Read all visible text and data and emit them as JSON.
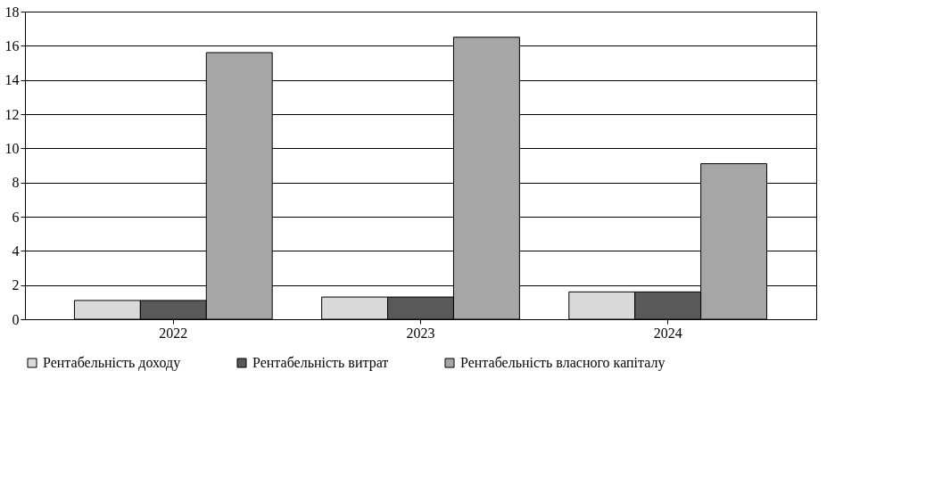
{
  "chart_data": {
    "type": "bar",
    "categories": [
      "2022",
      "2023",
      "2024"
    ],
    "series": [
      {
        "name": "Рентабельність доходу",
        "color": "#d9d9d9",
        "values": [
          1.1,
          1.3,
          1.6
        ]
      },
      {
        "name": "Рентабельність витрат",
        "color": "#595959",
        "values": [
          1.1,
          1.3,
          1.6
        ]
      },
      {
        "name": "Рентабельність власного капіталу",
        "color": "#a6a6a6",
        "values": [
          15.6,
          16.5,
          9.1
        ]
      }
    ],
    "ylim": [
      0,
      18
    ],
    "yticks": [
      0,
      2,
      4,
      6,
      8,
      10,
      12,
      14,
      16,
      18
    ],
    "grid": "y",
    "legend": "bottom"
  }
}
